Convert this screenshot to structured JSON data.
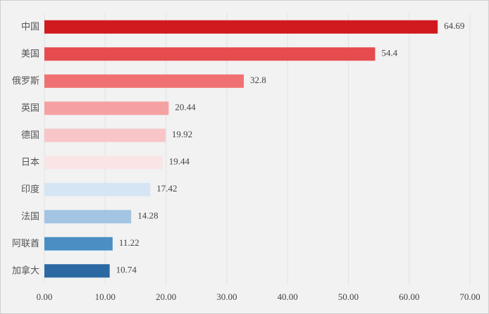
{
  "chart_data": {
    "type": "hbar",
    "categories": [
      "中国",
      "美国",
      "俄罗斯",
      "英国",
      "德国",
      "日本",
      "印度",
      "法国",
      "阿联酋",
      "加拿大"
    ],
    "values": [
      64.69,
      54.4,
      32.8,
      20.44,
      19.92,
      19.44,
      17.42,
      14.28,
      11.22,
      10.74
    ],
    "colors": [
      "#d11a1f",
      "#e64b4e",
      "#f07171",
      "#f5a1a2",
      "#f8c6c7",
      "#fae4e5",
      "#d6e5f4",
      "#a3c4e3",
      "#4a8ec4",
      "#2c69a2"
    ],
    "xlim": [
      0,
      70
    ],
    "xticks": [
      {
        "value": 0,
        "label": "0.00"
      },
      {
        "value": 10,
        "label": "10.00"
      },
      {
        "value": 20,
        "label": "20.00"
      },
      {
        "value": 30,
        "label": "30.00"
      },
      {
        "value": 40,
        "label": "40.00"
      },
      {
        "value": 50,
        "label": "50.00"
      },
      {
        "value": 60,
        "label": "60.00"
      },
      {
        "value": 70,
        "label": "70.00"
      }
    ],
    "grid": true
  }
}
